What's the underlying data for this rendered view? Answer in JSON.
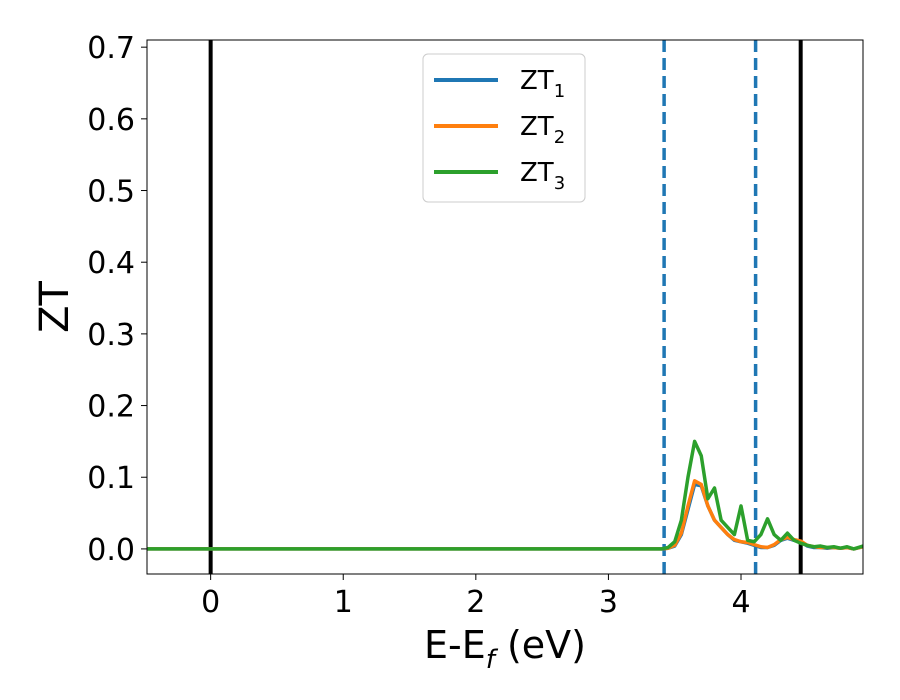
{
  "chart_data": {
    "type": "line",
    "xlabel": "E-E",
    "xlabel_sub": "f",
    "xlabel_unit": " (eV)",
    "ylabel": "ZT",
    "xlim": [
      -0.48,
      4.92
    ],
    "ylim": [
      -0.035,
      0.71
    ],
    "xticks": [
      0,
      1,
      2,
      3,
      4
    ],
    "xtick_labels": [
      "0",
      "1",
      "2",
      "3",
      "4"
    ],
    "yticks": [
      0.0,
      0.1,
      0.2,
      0.3,
      0.4,
      0.5,
      0.6,
      0.7
    ],
    "ytick_labels": [
      "0.0",
      "0.1",
      "0.2",
      "0.3",
      "0.4",
      "0.5",
      "0.6",
      "0.7"
    ],
    "grid": false,
    "legend_position": "top-center",
    "vertical_lines": [
      {
        "x": 0.0,
        "style": "solid",
        "color": "#000000"
      },
      {
        "x": 3.42,
        "style": "dashed",
        "color": "#1f77b4"
      },
      {
        "x": 4.11,
        "style": "dashed",
        "color": "#1f77b4"
      },
      {
        "x": 4.45,
        "style": "solid",
        "color": "#000000"
      }
    ],
    "series": [
      {
        "name": "ZT",
        "sub": "1",
        "color": "#1f77b4",
        "x": [
          -0.48,
          3.4,
          3.45,
          3.5,
          3.55,
          3.6,
          3.65,
          3.7,
          3.75,
          3.8,
          3.85,
          3.9,
          3.95,
          4.0,
          4.05,
          4.1,
          4.15,
          4.2,
          4.25,
          4.3,
          4.35,
          4.4,
          4.45,
          4.5,
          4.55,
          4.6,
          4.65,
          4.7,
          4.75,
          4.8,
          4.85,
          4.92
        ],
        "y": [
          0.0,
          0.0,
          0.001,
          0.004,
          0.02,
          0.055,
          0.09,
          0.088,
          0.06,
          0.04,
          0.03,
          0.02,
          0.012,
          0.01,
          0.008,
          0.005,
          0.002,
          0.002,
          0.005,
          0.012,
          0.015,
          0.012,
          0.01,
          0.004,
          0.002,
          0.002,
          0.001,
          0.002,
          0.001,
          0.002,
          0.0,
          0.003
        ]
      },
      {
        "name": "ZT",
        "sub": "2",
        "color": "#ff7f0e",
        "x": [
          -0.48,
          3.4,
          3.45,
          3.5,
          3.55,
          3.6,
          3.65,
          3.7,
          3.75,
          3.8,
          3.85,
          3.9,
          3.95,
          4.0,
          4.05,
          4.1,
          4.15,
          4.2,
          4.25,
          4.3,
          4.35,
          4.4,
          4.45,
          4.5,
          4.55,
          4.6,
          4.65,
          4.7,
          4.75,
          4.8,
          4.85,
          4.92
        ],
        "y": [
          0.0,
          0.0,
          0.001,
          0.005,
          0.022,
          0.06,
          0.095,
          0.09,
          0.06,
          0.04,
          0.03,
          0.02,
          0.013,
          0.01,
          0.009,
          0.006,
          0.003,
          0.002,
          0.006,
          0.013,
          0.016,
          0.013,
          0.011,
          0.005,
          0.003,
          0.002,
          0.002,
          0.002,
          0.001,
          0.002,
          0.0,
          0.003
        ]
      },
      {
        "name": "ZT",
        "sub": "3",
        "color": "#2ca02c",
        "x": [
          -0.48,
          3.4,
          3.45,
          3.5,
          3.55,
          3.6,
          3.65,
          3.7,
          3.75,
          3.8,
          3.85,
          3.9,
          3.95,
          4.0,
          4.05,
          4.1,
          4.15,
          4.2,
          4.25,
          4.3,
          4.35,
          4.4,
          4.45,
          4.5,
          4.55,
          4.6,
          4.65,
          4.7,
          4.75,
          4.8,
          4.85,
          4.92
        ],
        "y": [
          0.0,
          0.0,
          0.002,
          0.01,
          0.04,
          0.1,
          0.15,
          0.13,
          0.07,
          0.085,
          0.04,
          0.03,
          0.02,
          0.06,
          0.012,
          0.01,
          0.02,
          0.042,
          0.02,
          0.012,
          0.022,
          0.012,
          0.008,
          0.005,
          0.003,
          0.004,
          0.002,
          0.003,
          0.001,
          0.003,
          0.0,
          0.004
        ]
      }
    ]
  }
}
